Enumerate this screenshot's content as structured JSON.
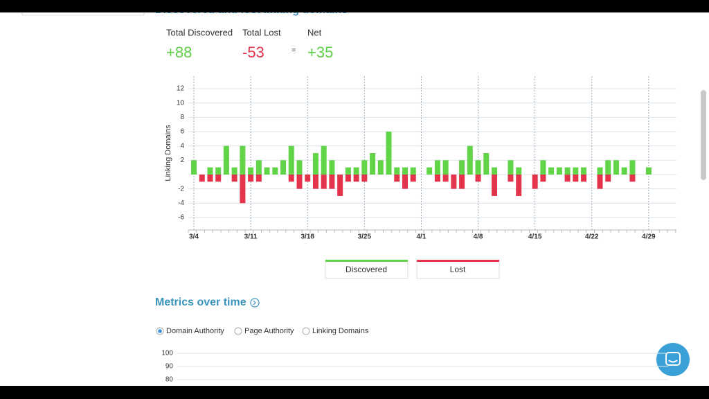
{
  "section_title": "Discovered and lost linking domains",
  "summary": [
    {
      "label": "Total Discovered",
      "value": "+88"
    },
    {
      "label": "Total Lost",
      "value": "-53"
    },
    {
      "label": "Net",
      "value": "+35"
    }
  ],
  "operator": "=",
  "chart_data": {
    "type": "bar",
    "ylabel": "Linking Domains",
    "categories": [
      "3/4",
      null,
      null,
      null,
      null,
      null,
      null,
      "3/11",
      null,
      null,
      null,
      null,
      null,
      null,
      "3/18",
      null,
      null,
      null,
      null,
      null,
      null,
      "3/25",
      null,
      null,
      null,
      null,
      null,
      null,
      "4/1",
      null,
      null,
      null,
      null,
      null,
      null,
      "4/8",
      null,
      null,
      null,
      null,
      null,
      null,
      "4/15",
      null,
      null,
      null,
      null,
      null,
      null,
      "4/22",
      null,
      null,
      null,
      null,
      null,
      null,
      "4/29"
    ],
    "series": [
      {
        "name": "Discovered",
        "color": "#62d448",
        "values": [
          2,
          0,
          1,
          1,
          4,
          1,
          4,
          1,
          2,
          1,
          1,
          2,
          4,
          2,
          0,
          3,
          4,
          2,
          0,
          1,
          1,
          2,
          3,
          2,
          6,
          1,
          1,
          1,
          0,
          1,
          2,
          2,
          0,
          2,
          4,
          2,
          3,
          1,
          0,
          2,
          1,
          0,
          0,
          2,
          1,
          1,
          1,
          1,
          1,
          0,
          1,
          2,
          2,
          1,
          2,
          0,
          1
        ]
      },
      {
        "name": "Lost",
        "color": "#e3344c",
        "values": [
          0,
          -1,
          -1,
          -1,
          0,
          -1,
          -4,
          -1,
          -1,
          0,
          0,
          0,
          -1,
          -2,
          -1,
          -2,
          -2,
          -2,
          -3,
          -1,
          -1,
          -1,
          0,
          0,
          0,
          -1,
          -2,
          -1,
          0,
          0,
          -1,
          -1,
          -2,
          -2,
          0,
          -1,
          0,
          -3,
          0,
          -1,
          -3,
          0,
          -2,
          -1,
          0,
          0,
          -1,
          -1,
          -1,
          0,
          -2,
          -1,
          0,
          0,
          -1,
          0,
          0
        ]
      }
    ],
    "ylim": [
      -8,
      13.5
    ],
    "yticks": [
      12,
      10,
      8,
      6,
      4,
      2,
      -2,
      -4,
      -6
    ],
    "grid": true
  },
  "metrics": {
    "title": "Metrics over time",
    "options": [
      "Domain Authority",
      "Page Authority",
      "Linking Domains"
    ],
    "selected": 0,
    "yticks": [
      100,
      90,
      80
    ]
  }
}
